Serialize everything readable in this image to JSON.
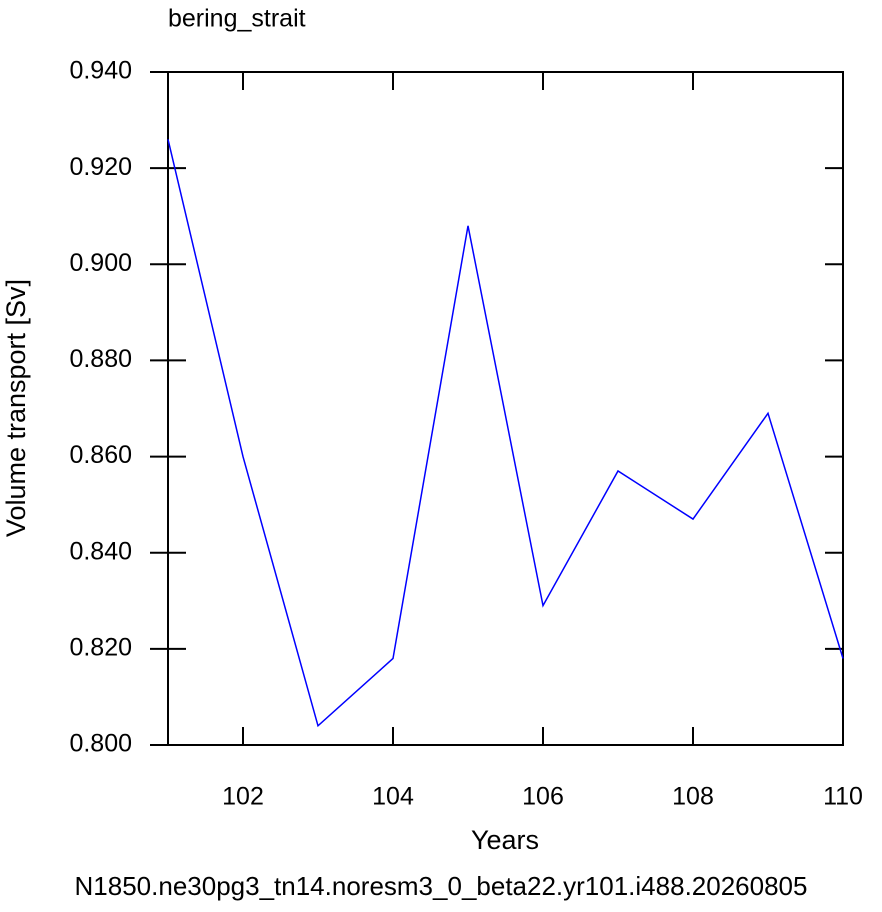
{
  "chart_data": {
    "type": "line",
    "title": "bering_strait",
    "x_label": "Years",
    "y_label": "Volume transport [Sv]",
    "footer": "N1850.ne30pg3_tn14.noresm3_0_beta22.yr101.i488.20260805",
    "x": [
      101,
      102,
      103,
      104,
      105,
      106,
      107,
      108,
      109,
      110
    ],
    "series": [
      {
        "name": "bering_strait",
        "color": "#0000ff",
        "values": [
          0.926,
          0.86,
          0.804,
          0.818,
          0.908,
          0.829,
          0.857,
          0.847,
          0.869,
          0.818
        ]
      }
    ],
    "xlim": [
      101,
      110
    ],
    "xticks": [
      102,
      104,
      106,
      108,
      110
    ],
    "ylim": [
      0.8,
      0.94
    ],
    "yticks": [
      {
        "value": 0.8,
        "label": "0.800"
      },
      {
        "value": 0.82,
        "label": "0.820"
      },
      {
        "value": 0.84,
        "label": "0.840"
      },
      {
        "value": 0.86,
        "label": "0.860"
      },
      {
        "value": 0.88,
        "label": "0.880"
      },
      {
        "value": 0.9,
        "label": "0.900"
      },
      {
        "value": 0.92,
        "label": "0.920"
      },
      {
        "value": 0.94,
        "label": "0.940"
      }
    ],
    "footer_color": "#0000ff"
  }
}
